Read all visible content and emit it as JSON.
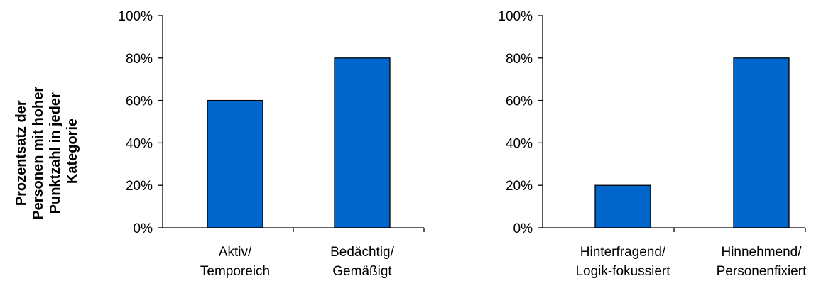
{
  "ylabel_lines": [
    "Prozentsatz der",
    "Personen mit hoher",
    "Punktzahl in jeder",
    "Kategorie"
  ],
  "colors": {
    "bar": "#0066CC"
  },
  "chart_data": [
    {
      "type": "bar",
      "categories": [
        "Aktiv/\nTemporeich",
        "Bedächtig/\nGemäßigt"
      ],
      "category_lines": [
        [
          "Aktiv/",
          "Temporeich"
        ],
        [
          "Bedächtig/",
          "Gemäßigt"
        ]
      ],
      "values": [
        60,
        80
      ],
      "ylim": [
        0,
        100
      ],
      "yticks": [
        "0%",
        "20%",
        "40%",
        "60%",
        "80%",
        "100%"
      ],
      "grid": false,
      "title": "",
      "xlabel": "",
      "ylabel": "Prozentsatz der Personen mit hoher Punktzahl in jeder Kategorie"
    },
    {
      "type": "bar",
      "categories": [
        "Hinterfragend/\nLogik-fokussiert",
        "Hinnehmend/\nPersonenfixiert"
      ],
      "category_lines": [
        [
          "Hinterfragend/",
          "Logik-fokussiert"
        ],
        [
          "Hinnehmend/",
          "Personenfixiert"
        ]
      ],
      "values": [
        20,
        80
      ],
      "ylim": [
        0,
        100
      ],
      "yticks": [
        "0%",
        "20%",
        "40%",
        "60%",
        "80%",
        "100%"
      ],
      "grid": false,
      "title": "",
      "xlabel": "",
      "ylabel": ""
    }
  ]
}
